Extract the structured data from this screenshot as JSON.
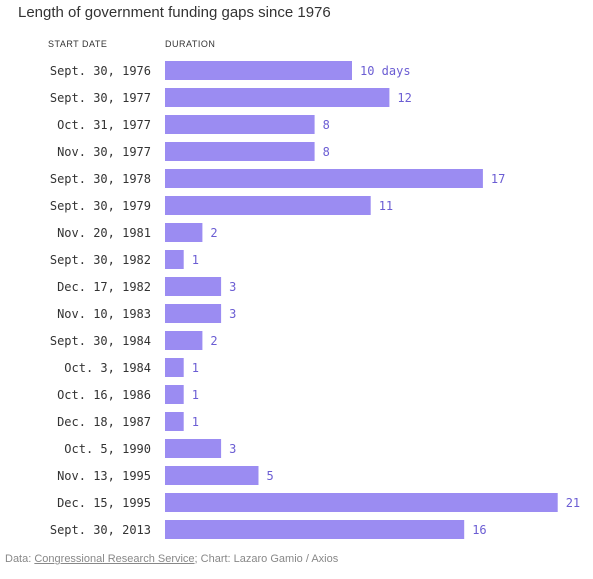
{
  "title": "Length of government funding gaps since 1976",
  "columns": {
    "start": "START DATE",
    "duration": "DURATION"
  },
  "colors": {
    "bar": "#9b8cf2",
    "label": "#6b5dd3"
  },
  "chart_data": {
    "type": "bar",
    "orientation": "horizontal",
    "categories": [
      "Sept. 30, 1976",
      "Sept. 30, 1977",
      "Oct. 31, 1977",
      "Nov. 30, 1977",
      "Sept. 30, 1978",
      "Sept. 30, 1979",
      "Nov. 20, 1981",
      "Sept. 30, 1982",
      "Dec. 17, 1982",
      "Nov. 10, 1983",
      "Sept. 30, 1984",
      "Oct. 3, 1984",
      "Oct. 16, 1986",
      "Dec. 18, 1987",
      "Oct. 5, 1990",
      "Nov. 13, 1995",
      "Dec. 15, 1995",
      "Sept. 30, 2013"
    ],
    "values": [
      10,
      12,
      8,
      8,
      17,
      11,
      2,
      1,
      3,
      3,
      2,
      1,
      1,
      1,
      3,
      5,
      21,
      16
    ],
    "value_labels": [
      "10 days",
      "12",
      "8",
      "8",
      "17",
      "11",
      "2",
      "1",
      "3",
      "3",
      "2",
      "1",
      "1",
      "1",
      "3",
      "5",
      "21",
      "16"
    ]
  },
  "footer": {
    "prefix": "Data: ",
    "source_link": "Congressional Research Service",
    "suffix": "; Chart: Lazaro Gamio / Axios"
  }
}
